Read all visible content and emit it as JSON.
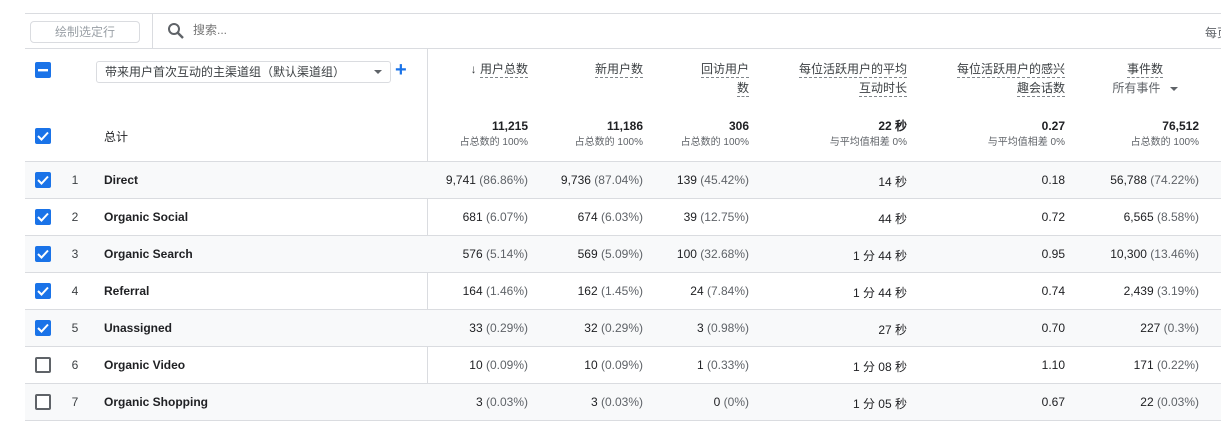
{
  "toolbar": {
    "plot_rows_label": "绘制选定行",
    "search_placeholder": "搜索...",
    "rows_per_page_label": "每页"
  },
  "dimension": {
    "selected": "带来用户首次互动的主渠道组（默认渠道组）"
  },
  "total_label": "总计",
  "columns": [
    {
      "label": "用户总数",
      "sorted": "desc"
    },
    {
      "label": "新用户数"
    },
    {
      "label1": "回访用户",
      "label2": "数"
    },
    {
      "label1": "每位活跃用户的平均",
      "label2": "互动时长"
    },
    {
      "label1": "每位活跃用户的感兴",
      "label2": "趣会话数"
    },
    {
      "label": "事件数",
      "filter": "所有事件"
    }
  ],
  "totals": [
    {
      "value": "11,215",
      "sub": "占总数的 100%"
    },
    {
      "value": "11,186",
      "sub": "占总数的 100%"
    },
    {
      "value": "306",
      "sub": "占总数的 100%"
    },
    {
      "value": "22 秒",
      "sub": "与平均值相差 0%"
    },
    {
      "value": "0.27",
      "sub": "与平均值相差 0%"
    },
    {
      "value": "76,512",
      "sub": "占总数的 100%"
    }
  ],
  "rows": [
    {
      "idx": "1",
      "name": "Direct",
      "checked": true,
      "users": "9,741",
      "users_pct": "(86.86%)",
      "new": "9,736",
      "new_pct": "(87.04%)",
      "ret": "139",
      "ret_pct": "(45.42%)",
      "time": "14 秒",
      "sess": "0.18",
      "events": "56,788",
      "events_pct": "(74.22%)"
    },
    {
      "idx": "2",
      "name": "Organic Social",
      "checked": true,
      "users": "681",
      "users_pct": "(6.07%)",
      "new": "674",
      "new_pct": "(6.03%)",
      "ret": "39",
      "ret_pct": "(12.75%)",
      "time": "44 秒",
      "sess": "0.72",
      "events": "6,565",
      "events_pct": "(8.58%)"
    },
    {
      "idx": "3",
      "name": "Organic Search",
      "checked": true,
      "users": "576",
      "users_pct": "(5.14%)",
      "new": "569",
      "new_pct": "(5.09%)",
      "ret": "100",
      "ret_pct": "(32.68%)",
      "time": "1 分 44 秒",
      "sess": "0.95",
      "events": "10,300",
      "events_pct": "(13.46%)"
    },
    {
      "idx": "4",
      "name": "Referral",
      "checked": true,
      "users": "164",
      "users_pct": "(1.46%)",
      "new": "162",
      "new_pct": "(1.45%)",
      "ret": "24",
      "ret_pct": "(7.84%)",
      "time": "1 分 44 秒",
      "sess": "0.74",
      "events": "2,439",
      "events_pct": "(3.19%)"
    },
    {
      "idx": "5",
      "name": "Unassigned",
      "checked": true,
      "users": "33",
      "users_pct": "(0.29%)",
      "new": "32",
      "new_pct": "(0.29%)",
      "ret": "3",
      "ret_pct": "(0.98%)",
      "time": "27 秒",
      "sess": "0.70",
      "events": "227",
      "events_pct": "(0.3%)"
    },
    {
      "idx": "6",
      "name": "Organic Video",
      "checked": false,
      "users": "10",
      "users_pct": "(0.09%)",
      "new": "10",
      "new_pct": "(0.09%)",
      "ret": "1",
      "ret_pct": "(0.33%)",
      "time": "1 分 08 秒",
      "sess": "1.10",
      "events": "171",
      "events_pct": "(0.22%)"
    },
    {
      "idx": "7",
      "name": "Organic Shopping",
      "checked": false,
      "users": "3",
      "users_pct": "(0.03%)",
      "new": "3",
      "new_pct": "(0.03%)",
      "ret": "0",
      "ret_pct": "(0%)",
      "time": "1 分 05 秒",
      "sess": "0.67",
      "events": "22",
      "events_pct": "(0.03%)"
    }
  ],
  "colors": {
    "accent": "#1a73e8",
    "border": "#dadce0",
    "alt_row": "#f8f9fa"
  }
}
